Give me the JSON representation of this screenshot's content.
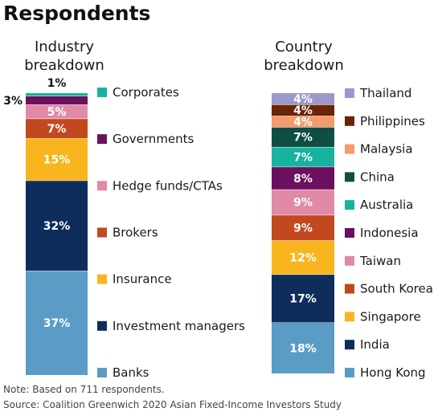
{
  "title": "Respondents",
  "chart_data": [
    {
      "type": "bar",
      "subtitle_lines": [
        "Industry",
        "breakdown"
      ],
      "unit": "%",
      "segments": [
        {
          "name": "Banks",
          "value": 37,
          "color": "#5a9cc6"
        },
        {
          "name": "Investment managers",
          "value": 32,
          "color": "#0f2d5c"
        },
        {
          "name": "Insurance",
          "value": 15,
          "color": "#f9b51e"
        },
        {
          "name": "Brokers",
          "value": 7,
          "color": "#c2491f"
        },
        {
          "name": "Hedge funds/CTAs",
          "value": 5,
          "color": "#e08aa8"
        },
        {
          "name": "Governments",
          "value": 3,
          "color": "#6b0f5f"
        },
        {
          "name": "Corporates",
          "value": 1,
          "color": "#18b3a0"
        }
      ]
    },
    {
      "type": "bar",
      "subtitle_lines": [
        "Country",
        "breakdown"
      ],
      "unit": "%",
      "segments": [
        {
          "name": "Hong Kong",
          "value": 18,
          "color": "#5a9cc6"
        },
        {
          "name": "India",
          "value": 17,
          "color": "#0f2d5c"
        },
        {
          "name": "Singapore",
          "value": 12,
          "color": "#f9b51e"
        },
        {
          "name": "South Korea",
          "value": 9,
          "color": "#c2491f"
        },
        {
          "name": "Taiwan",
          "value": 9,
          "color": "#e08aa8"
        },
        {
          "name": "Indonesia",
          "value": 8,
          "color": "#6b0f5f"
        },
        {
          "name": "Australia",
          "value": 7,
          "color": "#18b3a0"
        },
        {
          "name": "China",
          "value": 7,
          "color": "#0f4f43"
        },
        {
          "name": "Malaysia",
          "value": 4,
          "color": "#f59a6b"
        },
        {
          "name": "Philippines",
          "value": 4,
          "color": "#6a2408"
        },
        {
          "name": "Thailand",
          "value": 4,
          "color": "#9d98cc"
        }
      ]
    }
  ],
  "notes": [
    "Note:  Based on 711 respondents.",
    "Source: Coalition Greenwich 2020 Asian Fixed-Income Investors Study"
  ]
}
